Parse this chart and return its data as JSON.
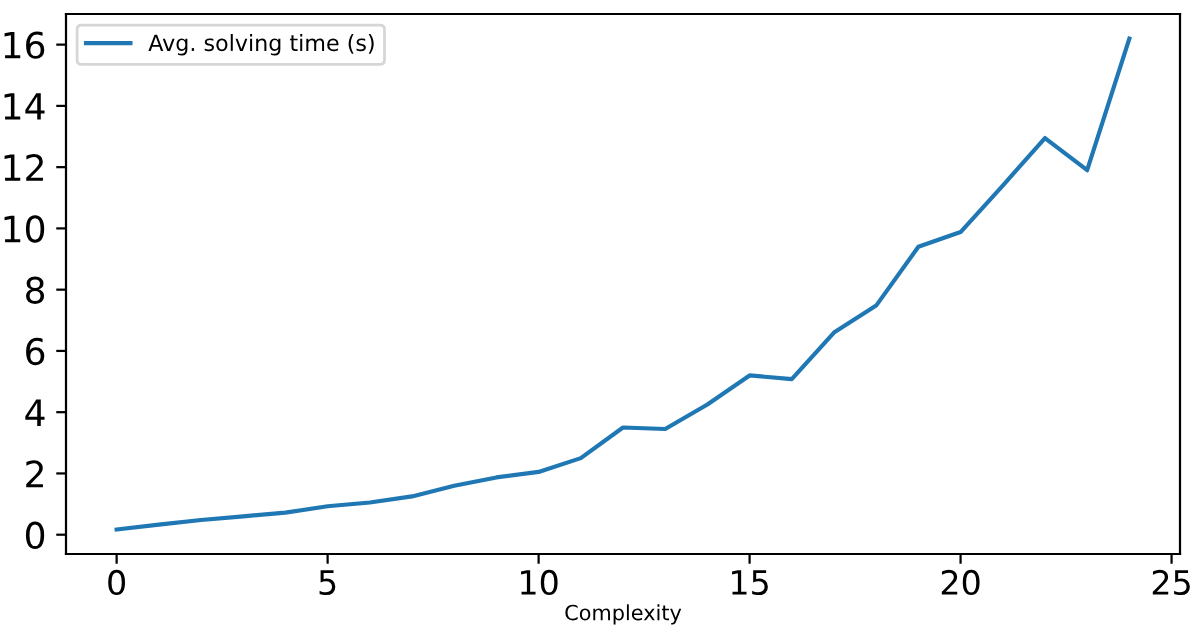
{
  "chart_data": {
    "type": "line",
    "xlabel": "Complexity",
    "x": [
      0,
      1,
      2,
      3,
      4,
      5,
      6,
      7,
      8,
      9,
      10,
      11,
      12,
      13,
      14,
      15,
      16,
      17,
      18,
      19,
      20,
      21,
      22,
      23,
      24
    ],
    "series": [
      {
        "name": "Avg. solving time (s)",
        "color": "#1f77b4",
        "values": [
          0.17,
          0.33,
          0.48,
          0.6,
          0.72,
          0.93,
          1.05,
          1.25,
          1.6,
          1.87,
          2.05,
          2.5,
          3.5,
          3.45,
          4.25,
          5.2,
          5.08,
          6.6,
          7.48,
          9.4,
          9.88,
          11.4,
          12.95,
          11.9,
          16.2
        ]
      }
    ],
    "xlim": [
      -1.2,
      25.2
    ],
    "ylim": [
      -0.63,
      17.0
    ],
    "xticks": [
      0,
      5,
      10,
      15,
      20,
      25
    ],
    "yticks": [
      0,
      2,
      4,
      6,
      8,
      10,
      12,
      14,
      16
    ],
    "legend": "top left",
    "grid": false
  }
}
